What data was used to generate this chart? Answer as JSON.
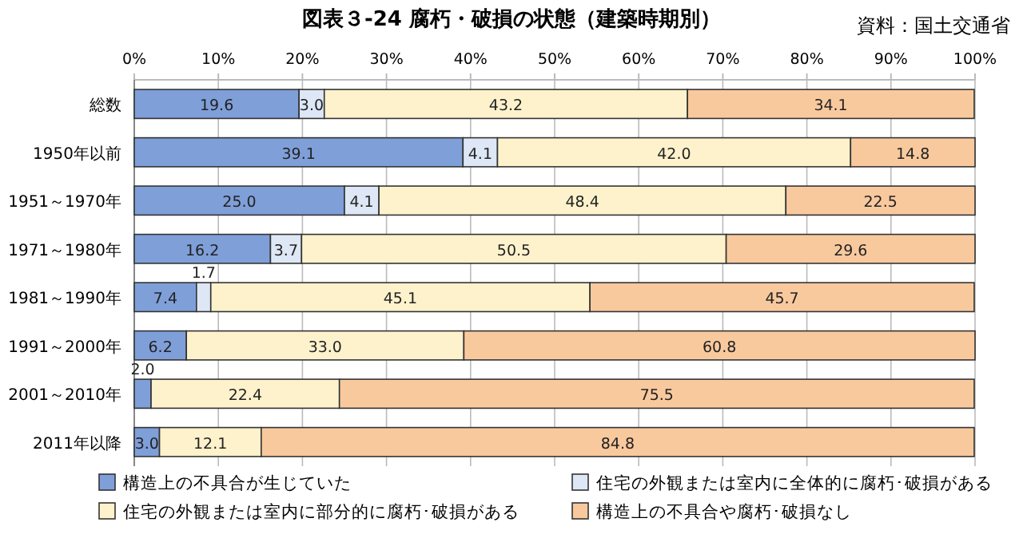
{
  "chart_data": {
    "type": "bar",
    "orientation": "horizontal",
    "stacked": true,
    "title": "図表３-24 腐朽・破損の状態（建築時期別）",
    "annotations": [
      "資料：国土交通省"
    ],
    "categories": [
      "総数",
      "1950年以前",
      "1951～1970年",
      "1971～1980年",
      "1981～1990年",
      "1991～2000年",
      "2001～2010年",
      "2011年以降"
    ],
    "xlim": [
      0,
      100
    ],
    "xticks": [
      {
        "value": 0,
        "label": "0%"
      },
      {
        "value": 10,
        "label": "10%"
      },
      {
        "value": 20,
        "label": "20%"
      },
      {
        "value": 30,
        "label": "30%"
      },
      {
        "value": 40,
        "label": "40%"
      },
      {
        "value": 50,
        "label": "50%"
      },
      {
        "value": 60,
        "label": "60%"
      },
      {
        "value": 70,
        "label": "70%"
      },
      {
        "value": 80,
        "label": "80%"
      },
      {
        "value": 90,
        "label": "90%"
      },
      {
        "value": 100,
        "label": "100%"
      }
    ],
    "grid": "x",
    "legend": "bottom",
    "series": [
      {
        "name": "構造上の不具合が生じていた",
        "color": "#7f9fd9",
        "values": [
          19.6,
          39.1,
          25.0,
          16.2,
          7.4,
          6.2,
          2.0,
          3.0
        ],
        "value_labels": [
          "19.6",
          "39.1",
          "25.0",
          "16.2",
          "7.4",
          "6.2",
          "2.0",
          "3.0"
        ]
      },
      {
        "name": "住宅の外観または室内に全体的に腐朽･破損がある",
        "color": "#dde7f5",
        "values": [
          3.0,
          4.1,
          4.1,
          3.7,
          1.7,
          null,
          null,
          null
        ],
        "value_labels": [
          "3.0",
          "4.1",
          "4.1",
          "3.7",
          "1.7",
          null,
          null,
          null
        ]
      },
      {
        "name": "住宅の外観または室内に部分的に腐朽･破損がある",
        "color": "#fdf2cc",
        "values": [
          43.2,
          42.0,
          48.4,
          50.5,
          45.1,
          33.0,
          22.4,
          12.1
        ],
        "value_labels": [
          "43.2",
          "42.0",
          "48.4",
          "50.5",
          "45.1",
          "33.0",
          "22.4",
          "12.1"
        ]
      },
      {
        "name": "構造上の不具合や腐朽･破損なし",
        "color": "#f9c99e",
        "values": [
          34.1,
          14.8,
          22.5,
          29.6,
          45.7,
          60.8,
          75.5,
          84.8
        ],
        "value_labels": [
          "34.1",
          "14.8",
          "22.5",
          "29.6",
          "45.7",
          "60.8",
          "75.5",
          "84.8"
        ]
      }
    ]
  }
}
